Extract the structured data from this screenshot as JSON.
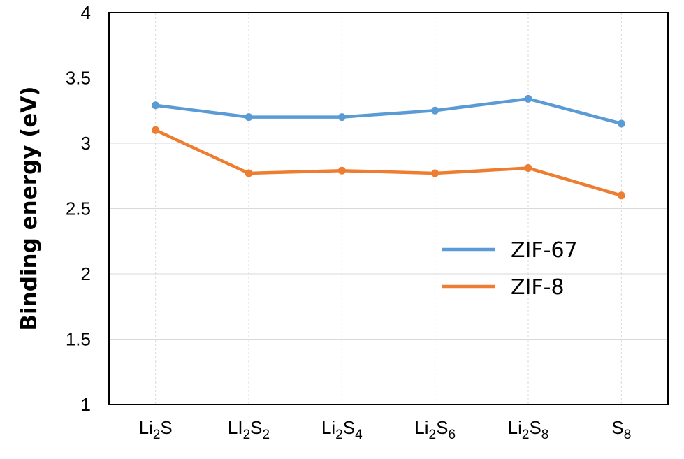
{
  "chart_data": {
    "type": "line",
    "ylabel": "Binding energy (eV)",
    "xlabel": "",
    "ylim": [
      1,
      4
    ],
    "yticks": [
      "1",
      "1.5",
      "2",
      "2.5",
      "3",
      "3.5",
      "4"
    ],
    "categories": [
      {
        "main": "Li",
        "sub1": "2",
        "mid": "S",
        "sub2": ""
      },
      {
        "main": "LI",
        "sub1": "2",
        "mid": "S",
        "sub2": "2"
      },
      {
        "main": "Li",
        "sub1": "2",
        "mid": "S",
        "sub2": "4"
      },
      {
        "main": "Li",
        "sub1": "2",
        "mid": "S",
        "sub2": "6"
      },
      {
        "main": "Li",
        "sub1": "2",
        "mid": "S",
        "sub2": "8"
      },
      {
        "main": "S",
        "sub1": "8",
        "mid": "",
        "sub2": ""
      }
    ],
    "series": [
      {
        "name": "ZIF-67",
        "color": "#5b9bd5",
        "values": [
          3.29,
          3.2,
          3.2,
          3.25,
          3.34,
          3.15
        ]
      },
      {
        "name": "ZIF-8",
        "color": "#ed7d31",
        "values": [
          3.1,
          2.77,
          2.79,
          2.77,
          2.81,
          2.6
        ]
      }
    ],
    "grid": true,
    "legend_position": "center-right"
  }
}
